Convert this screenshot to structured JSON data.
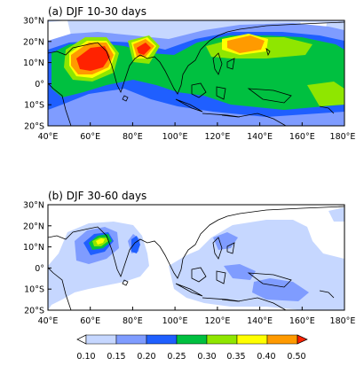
{
  "panels": [
    {
      "title": "(a) DJF 10-30 days",
      "lat_labels": [
        "30°N",
        "20°N",
        "10°N",
        "0°",
        "10°S",
        "20°S"
      ],
      "lon_labels": [
        "40°E",
        "60°E",
        "80°E",
        "100°E",
        "120°E",
        "140°E",
        "160°E",
        "180°E"
      ]
    },
    {
      "title": "(b) DJF 30-60 days",
      "lat_labels": [
        "30°N",
        "20°N",
        "10°N",
        "0°",
        "10°S",
        "20°S"
      ],
      "lon_labels": [
        "40°E",
        "60°E",
        "80°E",
        "100°E",
        "120°E",
        "140°E",
        "160°E",
        "180°E"
      ]
    }
  ],
  "colorbar": {
    "labels": [
      "0.10",
      "0.15",
      "0.20",
      "0.25",
      "0.30",
      "0.35",
      "0.40",
      "0.50"
    ],
    "colors": [
      "#c6d7ff",
      "#7f9cff",
      "#1f5fff",
      "#00c040",
      "#8fe600",
      "#ffff00",
      "#ff9a00",
      "#ff2200"
    ],
    "underflow_color": "#ffffff",
    "overflow_color": "#ff2200"
  },
  "map": {
    "lon_range": [
      40,
      180
    ],
    "lat_range": [
      -20,
      30
    ],
    "background_color": "#ffffff",
    "coast_color": "#000000"
  }
}
